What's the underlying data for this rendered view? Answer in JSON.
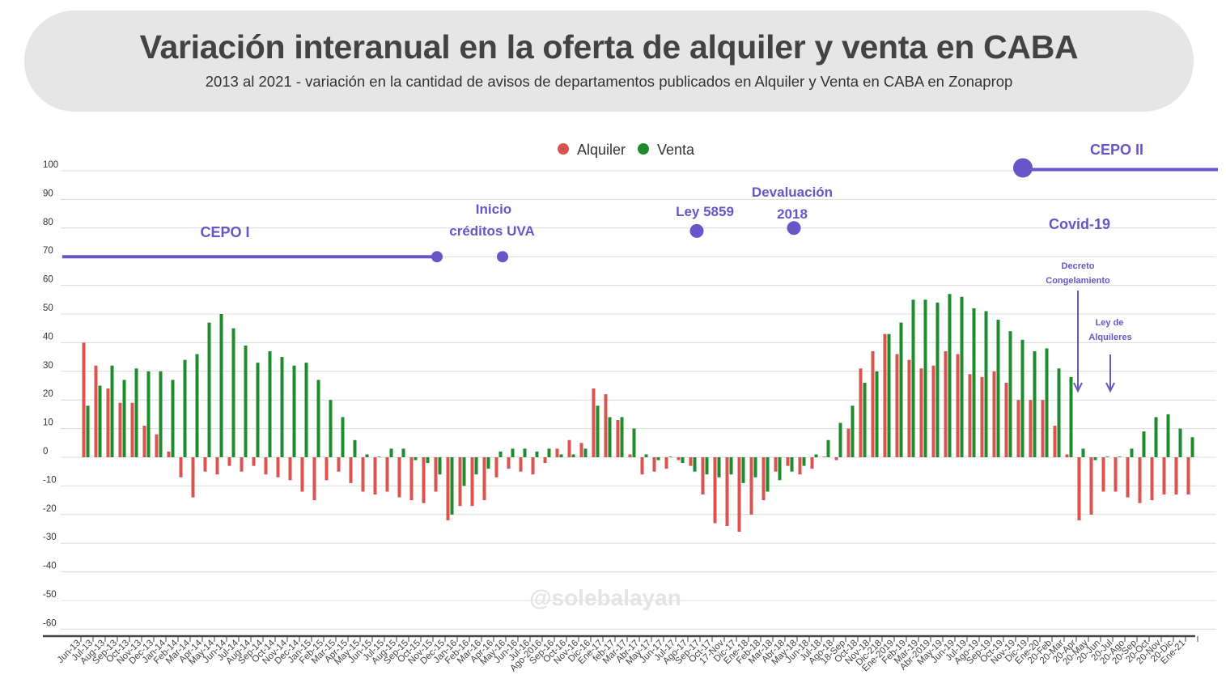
{
  "chart_data": {
    "type": "bar",
    "title": "Variación interanual en la oferta de alquiler y venta en CABA",
    "subtitle": "2013 al 2021 - variación en la cantidad de avisos de departamentos publicados en Alquiler y Venta en CABA en Zonaprop",
    "xlabel": "",
    "ylabel": "",
    "ylim": [
      -60,
      100
    ],
    "yticks": [
      100,
      90,
      80,
      70,
      60,
      50,
      40,
      30,
      20,
      10,
      0,
      -10,
      -20,
      -30,
      -40,
      -50,
      -60
    ],
    "grid": true,
    "legend_position": "top-center",
    "categories": [
      "Jun-13",
      "Jul-13",
      "Aug-13",
      "Sep-13",
      "Oct-13",
      "Nov-13",
      "Dec-13",
      "Jan-14",
      "Feb-14",
      "Mar-14",
      "Apr-14",
      "May-14",
      "Jun-14",
      "Jul-14",
      "Aug-14",
      "Sep-14",
      "Oct-14",
      "Nov-14",
      "Dec-14",
      "Jan-15",
      "Feb-15",
      "Mar-15",
      "Apr-15",
      "May-15",
      "Jun-15",
      "Jul-15",
      "Aug-15",
      "Sep-15",
      "Oct-15",
      "Nov-15",
      "Dec-15",
      "Jan-16",
      "Feb-16",
      "Mar-16",
      "Apr-16",
      "May-16",
      "Jun-16",
      "Jul-16",
      "Ago-2016",
      "Sep-16",
      "Oct-16",
      "Nov-16",
      "Dic-16",
      "Ene-17",
      "feb-17",
      "Mar-17",
      "Abr-17",
      "May-17",
      "Jun-17",
      "Jul-17",
      "Ago-17",
      "Sep-17",
      "Oct-17",
      "17-Nov",
      "Dic-17",
      "Ene-18",
      "Feb-18",
      "Mar-18",
      "Abr-18",
      "May-18",
      "Jun-18",
      "Jul-18",
      "Ago-18",
      "18-Sep",
      "Oct-18",
      "Nov-18",
      "Dic-218",
      "Ene-2019",
      "Feb-19",
      "Mar-19",
      "Abr-2019",
      "May-19",
      "Jun-19",
      "Jul-19",
      "Ago-19",
      "Sep-19",
      "Oct-19",
      "Nov-19",
      "Dic-19",
      "Ene-20",
      "20-Feb",
      "20-Mar",
      "20-Apr",
      "20-May",
      "20-Jun",
      "20-Jul",
      "20-Ago",
      "20-Sep",
      "20-Oct",
      "20-Nov",
      "20-Dic",
      "Ene-21"
    ],
    "series": [
      {
        "name": "Alquiler",
        "color": "#d9534f",
        "values": [
          40,
          32,
          24,
          19,
          19,
          11,
          8,
          2,
          -7,
          -14,
          -5,
          -6,
          -3,
          -5,
          -3,
          -6,
          -7,
          -8,
          -12,
          -15,
          -8,
          -5,
          -9,
          -12,
          -13,
          -12,
          -14,
          -15,
          -16,
          -12,
          -22,
          -17,
          -17,
          -15,
          -7,
          -4,
          -5,
          -6,
          -2,
          3,
          6,
          5,
          24,
          22,
          13,
          1,
          -6,
          -5,
          -4,
          -1,
          -3,
          -13,
          -23,
          -24,
          -26,
          -20,
          -15,
          -5,
          -3,
          -6,
          -4,
          0,
          -1,
          10,
          31,
          37,
          43,
          36,
          34,
          31,
          32,
          37,
          36,
          29,
          28,
          30,
          26,
          20,
          20,
          20,
          11,
          1,
          -22,
          -20,
          -12,
          -12,
          -14,
          -16,
          -15,
          -13,
          -13,
          -13
        ]
      },
      {
        "name": "Venta",
        "color": "#1e8c2e",
        "values": [
          18,
          25,
          32,
          27,
          31,
          30,
          30,
          27,
          34,
          36,
          47,
          50,
          45,
          39,
          33,
          37,
          35,
          32,
          33,
          27,
          20,
          14,
          6,
          1,
          0,
          3,
          3,
          -1,
          -2,
          -6,
          -20,
          -10,
          -6,
          -4,
          2,
          3,
          3,
          2,
          3,
          1,
          1,
          3,
          18,
          14,
          14,
          10,
          1,
          -1,
          0,
          -2,
          -5,
          -6,
          -7,
          -6,
          -9,
          -7,
          -12,
          -8,
          -5,
          -3,
          1,
          6,
          12,
          18,
          26,
          30,
          43,
          47,
          55,
          55,
          54,
          57,
          56,
          52,
          51,
          48,
          44,
          41,
          37,
          38,
          31,
          28,
          3,
          -1,
          0,
          0,
          3,
          9,
          14,
          15,
          10,
          7
        ]
      }
    ],
    "annotations": {
      "cepo1": {
        "label": "CEPO I",
        "period": [
          "Jun-13",
          "Nov-15"
        ],
        "value": 70
      },
      "uva": {
        "line1": "Inicio",
        "line2": "créditos UVA",
        "date": "Apr-16",
        "value": 70
      },
      "ley5859": {
        "label": "Ley 5859",
        "date": "Ago-17",
        "value": 79
      },
      "devaluacion": {
        "line1": "Devaluación",
        "line2": "2018",
        "date": "Abr-18",
        "value": 80
      },
      "cepo2": {
        "label": "CEPO II",
        "start": "Sep-19",
        "value": 101
      },
      "covid": {
        "label": "Covid-19"
      },
      "decreto": {
        "line1": "Decreto",
        "line2": "Congelamiento",
        "date": "20-Apr"
      },
      "ley_alquileres": {
        "line1": "Ley de",
        "line2": "Alquileres",
        "date": "20-Jul"
      }
    },
    "annotation_color": "#6a55c8"
  },
  "watermark": "@solebalayan"
}
